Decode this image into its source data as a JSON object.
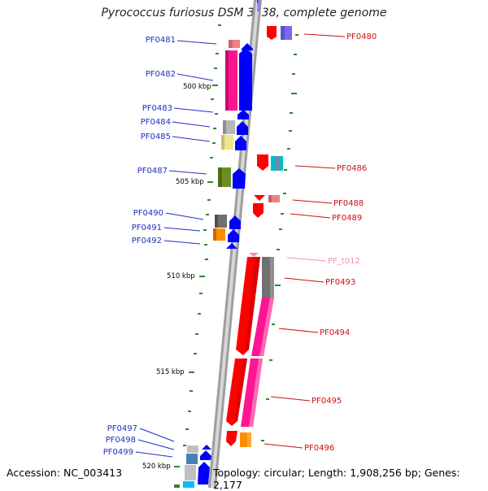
{
  "title": "Pyrococcus furiosus DSM 3638, complete genome",
  "footer": {
    "accession": "Accession: NC_003413",
    "summary": "Topology: circular; Length: 1,908,256 bp; Genes: 2,177"
  },
  "colors": {
    "left_label": "#1f2fbf",
    "right_label": "#cc1111",
    "trna_label": "#f48fb1",
    "tick": "#2a8a2a",
    "backbone": "#9e9e9e",
    "forward_strand": "#0000ff",
    "reverse_strand": "#ff0000"
  },
  "scale_labels": [
    "500 kbp",
    "505 kbp",
    "510 kbp",
    "515 kbp",
    "520 kbp"
  ],
  "gene_labels_left": [
    "PF0481",
    "PF0482",
    "PF0483",
    "PF0484",
    "PF0485",
    "PF0487",
    "PF0490",
    "PF0491",
    "PF0492",
    "PF0497",
    "PF0498",
    "PF0499"
  ],
  "gene_labels_right": [
    "PF0480",
    "PF0486",
    "PF0488",
    "PF0489",
    "PF0493",
    "PF0494",
    "PF0495",
    "PF0496"
  ],
  "trna_label": "PF_t012"
}
